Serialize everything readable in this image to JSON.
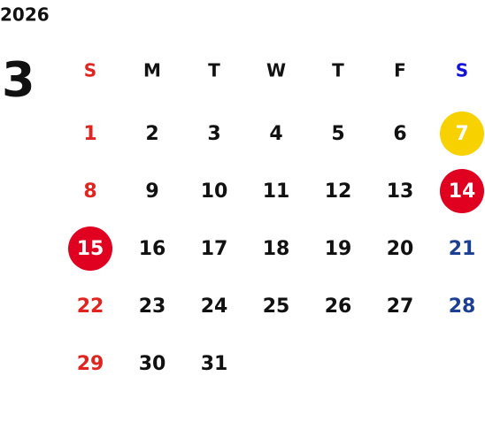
{
  "year": "2026",
  "month": "3",
  "weekdays": [
    "S",
    "M",
    "T",
    "W",
    "T",
    "F",
    "S"
  ],
  "weeks": [
    [
      1,
      2,
      3,
      4,
      5,
      6,
      {
        "value": 7,
        "circle": "#f7d100"
      }
    ],
    [
      8,
      9,
      10,
      11,
      12,
      13,
      {
        "value": 14,
        "circle": "#e00020"
      }
    ],
    [
      {
        "value": 15,
        "circle": "#e00020"
      },
      16,
      17,
      18,
      19,
      20,
      21
    ],
    [
      22,
      23,
      24,
      25,
      26,
      27,
      28
    ],
    [
      29,
      30,
      31,
      null,
      null,
      null,
      null
    ]
  ],
  "colors": {
    "sunday": "#e02420",
    "saturday": "#1c3f94",
    "saturday_header": "#1414d8",
    "weekday": "#111111",
    "circled_text": "#ffffff"
  }
}
